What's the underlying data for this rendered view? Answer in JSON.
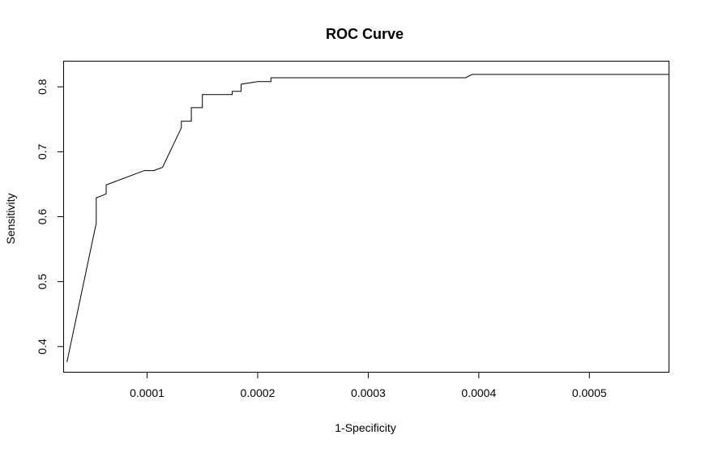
{
  "chart_data": {
    "type": "line",
    "title": "ROC Curve",
    "xlabel": "1-Specificity",
    "ylabel": "Sensitivity",
    "xlim": [
      2.45e-05,
      0.000572
    ],
    "ylim": [
      0.3605,
      0.8395
    ],
    "x_ticks": [
      {
        "value": 0.0001,
        "label": "0.0001"
      },
      {
        "value": 0.0002,
        "label": "0.0002"
      },
      {
        "value": 0.0003,
        "label": "0.0003"
      },
      {
        "value": 0.0004,
        "label": "0.0004"
      },
      {
        "value": 0.0005,
        "label": "0.0005"
      }
    ],
    "y_ticks": [
      {
        "value": 0.4,
        "label": "0.4"
      },
      {
        "value": 0.5,
        "label": "0.5"
      },
      {
        "value": 0.6,
        "label": "0.6"
      },
      {
        "value": 0.7,
        "label": "0.7"
      },
      {
        "value": 0.8,
        "label": "0.8"
      }
    ],
    "grid": false,
    "legend": "none",
    "line_color": "#000000",
    "series": [
      {
        "x": [
          2.75e-05,
          5.4e-05,
          5.4e-05,
          6.3e-05,
          6.3e-05,
          9.75e-05,
          0.000106,
          0.000114,
          0.000131,
          0.000131,
          0.00014,
          0.00014,
          0.00015,
          0.00015,
          0.000168,
          0.000177,
          0.000177,
          0.000185,
          0.000185,
          0.0002,
          0.000212,
          0.000212,
          0.000388,
          0.000394,
          0.000572
        ],
        "y": [
          0.376,
          0.59,
          0.629,
          0.635,
          0.649,
          0.671,
          0.671,
          0.676,
          0.737,
          0.747,
          0.747,
          0.768,
          0.768,
          0.788,
          0.788,
          0.788,
          0.793,
          0.793,
          0.804,
          0.808,
          0.808,
          0.814,
          0.814,
          0.819,
          0.819
        ]
      }
    ]
  }
}
